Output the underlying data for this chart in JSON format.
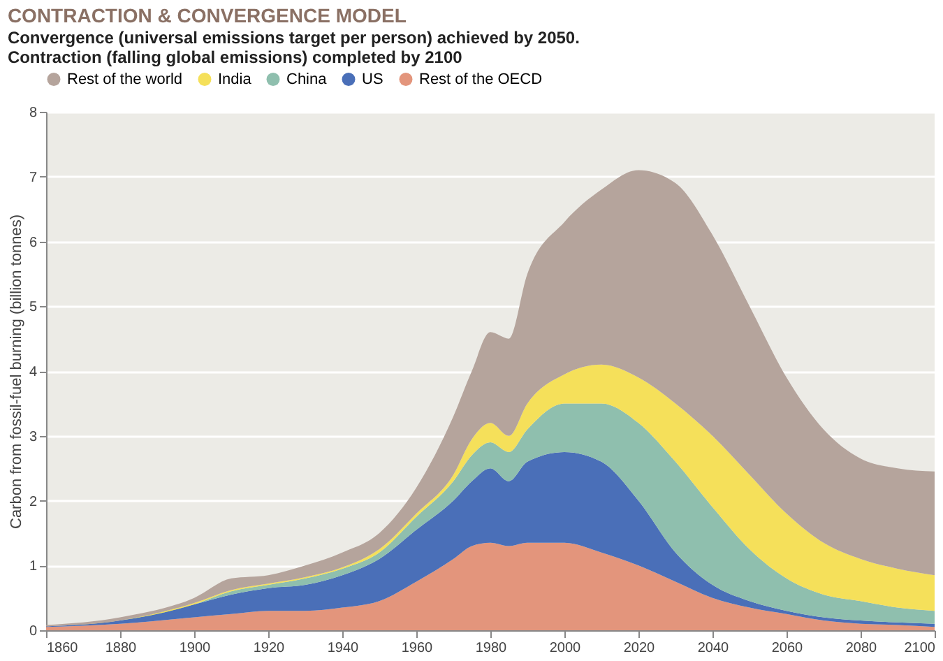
{
  "chart_data": {
    "type": "area",
    "stacked": true,
    "title": "CONTRACTION & CONVERGENCE MODEL",
    "subtitle": "Convergence (universal emissions target per person) achieved by 2050.\nContraction (falling global emissions) completed by 2100",
    "ylabel": "Carbon from fossil-fuel burning (billion tonnes)",
    "x": [
      1860,
      1880,
      1900,
      1910,
      1920,
      1930,
      1940,
      1950,
      1960,
      1970,
      1975,
      1980,
      1985,
      1990,
      2000,
      2010,
      2020,
      2030,
      2040,
      2050,
      2060,
      2070,
      2080,
      2090,
      2100
    ],
    "series": [
      {
        "name": "Rest of the OECD",
        "color": "#e3957c",
        "values": [
          0.05,
          0.1,
          0.2,
          0.25,
          0.3,
          0.3,
          0.35,
          0.45,
          0.75,
          1.1,
          1.3,
          1.35,
          1.3,
          1.35,
          1.35,
          1.2,
          1.0,
          0.75,
          0.5,
          0.35,
          0.25,
          0.15,
          0.1,
          0.08,
          0.05
        ]
      },
      {
        "name": "US",
        "color": "#4a6fb8",
        "values": [
          0.01,
          0.05,
          0.2,
          0.3,
          0.35,
          0.4,
          0.5,
          0.65,
          0.8,
          0.9,
          1.0,
          1.15,
          1.0,
          1.25,
          1.4,
          1.4,
          1.0,
          0.45,
          0.2,
          0.1,
          0.05,
          0.05,
          0.05,
          0.04,
          0.05
        ]
      },
      {
        "name": "China",
        "color": "#8fbfae",
        "values": [
          0,
          0,
          0,
          0.05,
          0.05,
          0.1,
          0.1,
          0.1,
          0.2,
          0.3,
          0.4,
          0.4,
          0.45,
          0.5,
          0.75,
          0.9,
          1.2,
          1.4,
          1.2,
          0.8,
          0.5,
          0.35,
          0.3,
          0.23,
          0.2
        ]
      },
      {
        "name": "India",
        "color": "#f5e05a",
        "values": [
          0,
          0,
          0.02,
          0.02,
          0.02,
          0.02,
          0.02,
          0.05,
          0.05,
          0.1,
          0.25,
          0.3,
          0.25,
          0.4,
          0.45,
          0.6,
          0.7,
          0.9,
          1.1,
          1.15,
          1.0,
          0.8,
          0.65,
          0.6,
          0.55
        ]
      },
      {
        "name": "Rest of the world",
        "color": "#b5a49c",
        "values": [
          0.02,
          0.05,
          0.08,
          0.18,
          0.13,
          0.18,
          0.23,
          0.25,
          0.4,
          0.9,
          1.05,
          1.4,
          1.5,
          2.0,
          2.35,
          2.7,
          3.2,
          3.4,
          3.1,
          2.6,
          2.1,
          1.75,
          1.55,
          1.55,
          1.6
        ]
      }
    ],
    "xlim": [
      1860,
      2100
    ],
    "xticks": [
      1860,
      1880,
      1900,
      1920,
      1940,
      1960,
      1980,
      2000,
      2020,
      2040,
      2060,
      2080,
      2100
    ],
    "ylim": [
      0,
      8
    ],
    "yticks": [
      0,
      1,
      2,
      3,
      4,
      5,
      6,
      7,
      8
    ],
    "grid": "y",
    "legend": "top left"
  }
}
